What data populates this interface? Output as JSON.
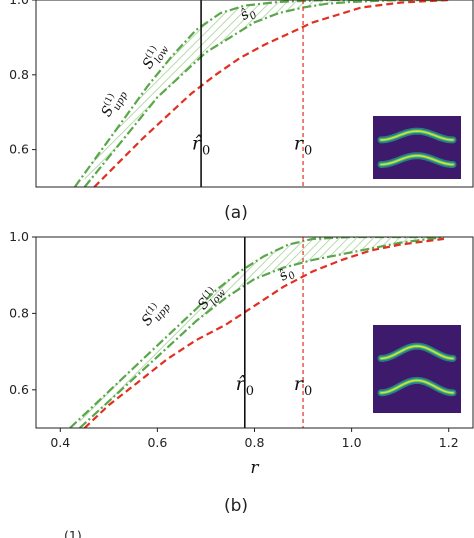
{
  "chart_data": [
    {
      "type": "line",
      "panel_label": "(a)",
      "xlim": [
        0.35,
        1.25
      ],
      "ylim": [
        0.5,
        1.0
      ],
      "yticks": [
        "0.6",
        "0.8",
        "1.0"
      ],
      "xticks": [],
      "xlabel": "",
      "grid": false,
      "series": [
        {
          "name": "S^{(1)}_{upp}",
          "label_main": "S",
          "label_sup": "(1)",
          "label_sub": "upp",
          "color": "#5aa64a",
          "style": "dash-dot",
          "x": [
            0.43,
            0.48,
            0.53,
            0.58,
            0.63,
            0.68,
            0.73,
            0.78,
            0.85,
            0.95,
            1.05,
            1.15,
            1.2
          ],
          "y": [
            0.5,
            0.59,
            0.68,
            0.77,
            0.85,
            0.92,
            0.965,
            0.985,
            0.995,
            1.0,
            1.0,
            1.0,
            1.0
          ]
        },
        {
          "name": "S^{(1)}_{low}",
          "label_main": "S",
          "label_sup": "(1)",
          "label_sub": "low",
          "color": "#5aa64a",
          "style": "dash-dot",
          "x": [
            0.45,
            0.5,
            0.55,
            0.6,
            0.65,
            0.7,
            0.75,
            0.8,
            0.85,
            0.9,
            0.95,
            1.0,
            1.1,
            1.2
          ],
          "y": [
            0.5,
            0.58,
            0.66,
            0.74,
            0.8,
            0.86,
            0.9,
            0.94,
            0.965,
            0.98,
            0.99,
            0.995,
            1.0,
            1.0
          ]
        },
        {
          "name": "ŝ_0",
          "label_main": "ŝ",
          "label_sup": "",
          "label_sub": "0",
          "color": "#e03020",
          "style": "dashed",
          "x": [
            0.47,
            0.52,
            0.57,
            0.62,
            0.67,
            0.72,
            0.77,
            0.82,
            0.87,
            0.92,
            0.97,
            1.02,
            1.1,
            1.2
          ],
          "y": [
            0.5,
            0.565,
            0.63,
            0.69,
            0.75,
            0.8,
            0.845,
            0.88,
            0.91,
            0.94,
            0.96,
            0.98,
            0.993,
            1.0
          ]
        }
      ],
      "vlines": [
        {
          "x": 0.69,
          "label": "r̂",
          "label_sub": "0",
          "color": "#111111",
          "style": "solid"
        },
        {
          "x": 0.9,
          "label": "r",
          "label_sub": "0",
          "color": "#e03020",
          "style": "dashed"
        }
      ]
    },
    {
      "type": "line",
      "panel_label": "(b)",
      "xlim": [
        0.35,
        1.25
      ],
      "ylim": [
        0.5,
        1.0
      ],
      "yticks": [
        "0.6",
        "0.8",
        "1.0"
      ],
      "xticks": [
        "0.4",
        "0.6",
        "0.8",
        "1.0",
        "1.2"
      ],
      "xlabel": "r",
      "grid": false,
      "series": [
        {
          "name": "S^{(1)}_{upp}",
          "label_main": "S",
          "label_sup": "(1)",
          "label_sub": "upp",
          "color": "#5aa64a",
          "style": "dash-dot",
          "x": [
            0.42,
            0.47,
            0.52,
            0.57,
            0.62,
            0.67,
            0.72,
            0.77,
            0.82,
            0.87,
            0.92,
            1.0,
            1.1,
            1.19
          ],
          "y": [
            0.5,
            0.56,
            0.62,
            0.68,
            0.74,
            0.8,
            0.86,
            0.91,
            0.95,
            0.98,
            0.995,
            1.0,
            1.0,
            1.0
          ]
        },
        {
          "name": "S^{(1)}_{low}",
          "label_main": "S",
          "label_sup": "(1)",
          "label_sub": "low",
          "color": "#5aa64a",
          "style": "dash-dot",
          "x": [
            0.44,
            0.5,
            0.56,
            0.62,
            0.68,
            0.74,
            0.8,
            0.86,
            0.92,
            0.98,
            1.04,
            1.1,
            1.19
          ],
          "y": [
            0.5,
            0.57,
            0.64,
            0.71,
            0.78,
            0.84,
            0.89,
            0.92,
            0.94,
            0.955,
            0.97,
            0.985,
            1.0
          ]
        },
        {
          "name": "ŝ_0",
          "label_main": "ŝ",
          "label_sup": "",
          "label_sub": "0",
          "color": "#e03020",
          "style": "dashed",
          "x": [
            0.45,
            0.5,
            0.56,
            0.62,
            0.68,
            0.74,
            0.8,
            0.86,
            0.92,
            0.98,
            1.04,
            1.1,
            1.19
          ],
          "y": [
            0.5,
            0.56,
            0.62,
            0.68,
            0.73,
            0.77,
            0.82,
            0.87,
            0.91,
            0.94,
            0.965,
            0.98,
            0.995
          ]
        }
      ],
      "vlines": [
        {
          "x": 0.78,
          "label": "r̂",
          "label_sub": "0",
          "color": "#111111",
          "style": "solid"
        },
        {
          "x": 0.9,
          "label": "r",
          "label_sub": "0",
          "color": "#e03020",
          "style": "dashed"
        }
      ]
    }
  ],
  "partial_caption_fragment": "(1)"
}
